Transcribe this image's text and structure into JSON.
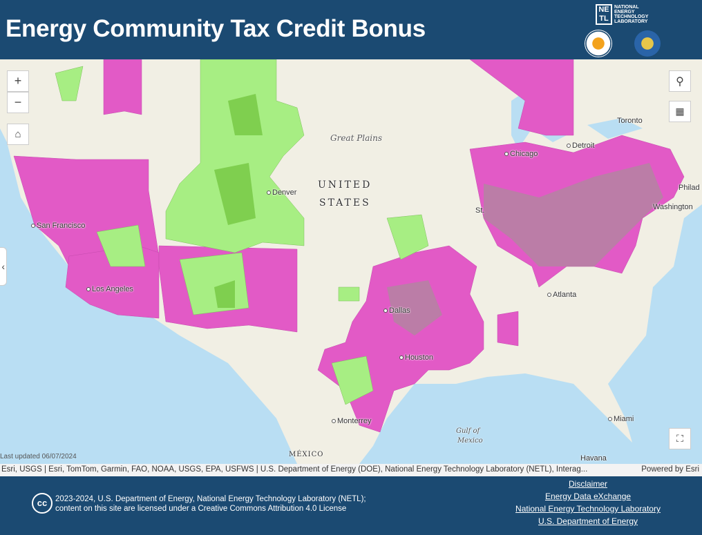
{
  "header": {
    "title": "Energy Community Tax Credit Bonus",
    "netl_logo": {
      "mark": "NETL",
      "text": [
        "NATIONAL",
        "ENERGY",
        "TECHNOLOGY",
        "LABORATORY"
      ]
    },
    "seals": [
      "doe-seal-icon",
      "treasury-seal-icon"
    ]
  },
  "map": {
    "colors": {
      "coal_closure": "#e25ac6",
      "statistical_area": "#a7ee83",
      "statistical_area_dark": "#7fcf4f",
      "ocean": "#b9def3",
      "land": "#f1efe4"
    },
    "labels": {
      "country": [
        "UNITED",
        "STATES"
      ],
      "region": "Great Plains",
      "mexico": "MÉXICO",
      "gulf": [
        "Gulf of",
        "Mexico"
      ]
    },
    "cities": [
      "Toronto",
      "Detroit",
      "Chicago",
      "Denver",
      "Philad",
      "Washington",
      "San Francisco",
      "St.",
      "Atlanta",
      "Los Angeles",
      "Dallas",
      "Houston",
      "Monterrey",
      "Miami",
      "Havana"
    ],
    "last_updated": "Last updated 06/07/2024",
    "controls": {
      "zoom_in": "+",
      "zoom_out": "−"
    }
  },
  "attribution": {
    "text": "Esri, USGS | Esri, TomTom, Garmin, FAO, NOAA, USGS, EPA, USFWS | U.S. Department of Energy (DOE), National Energy Technology Laboratory (NETL), Interag...",
    "powered": "Powered by Esri"
  },
  "footer": {
    "cc": "cc",
    "license_line1": "2023-2024, U.S. Department of Energy, National Energy Technology Laboratory (NETL);",
    "license_line2": "content on this site are licensed under a Creative Commons Attribution 4.0 License",
    "links": [
      "Disclaimer",
      "Energy Data eXchange",
      "National Energy Technology Laboratory",
      "U.S. Department of Energy"
    ]
  }
}
